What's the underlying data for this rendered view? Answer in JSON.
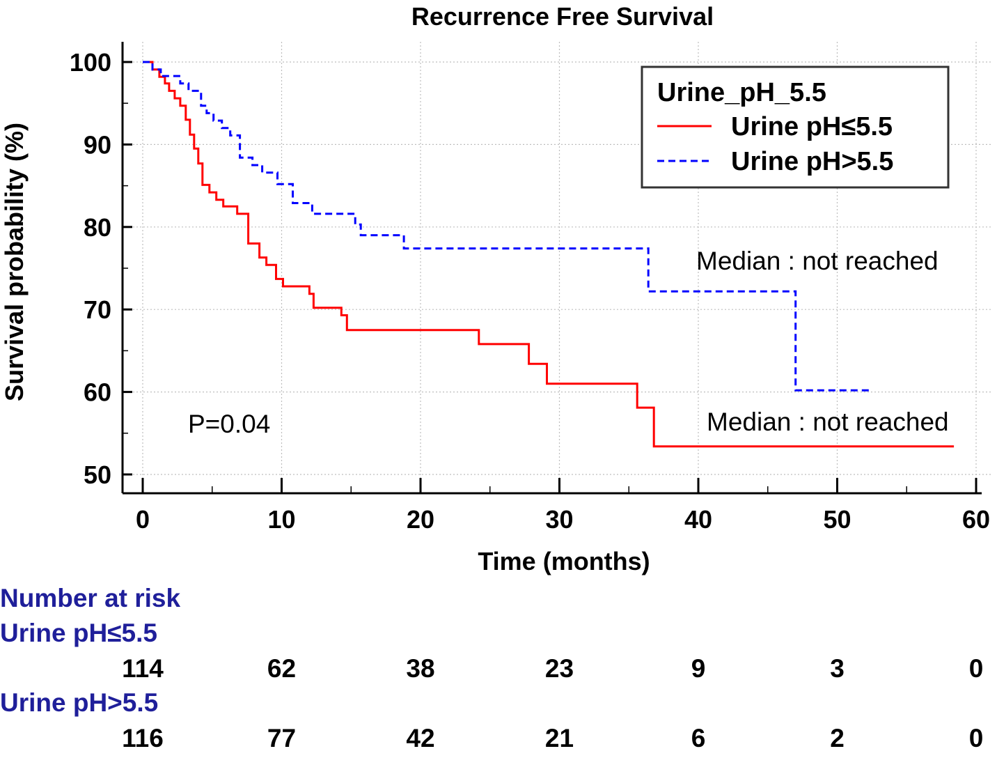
{
  "chart_data": {
    "type": "line",
    "title": "Recurrence Free Survival",
    "xlabel": "Time (months)",
    "ylabel": "Survival probability (%)",
    "xlim": [
      0,
      60
    ],
    "ylim": [
      50,
      100
    ],
    "xticks": [
      0,
      10,
      20,
      30,
      40,
      50,
      60
    ],
    "yticks": [
      50,
      60,
      70,
      80,
      90,
      100
    ],
    "grid": true,
    "legend": {
      "title": "Urine_pH_5.5",
      "position": "top-right"
    },
    "series": [
      {
        "name": "Urine pH≤5.5",
        "color": "#ff0000",
        "style": "solid",
        "step_x": [
          0,
          0.7,
          1.2,
          1.6,
          1.9,
          2.3,
          2.7,
          3.1,
          3.4,
          3.7,
          4.0,
          4.3,
          4.8,
          5.3,
          5.8,
          6.8,
          7.6,
          8.4,
          8.9,
          9.6,
          10.1,
          12.0,
          12.3,
          14.3,
          14.7,
          24.2,
          27.8,
          29.1,
          35.6,
          36.8,
          58.4
        ],
        "step_y": [
          100,
          99.1,
          98.2,
          97.4,
          96.5,
          95.6,
          94.7,
          93.0,
          91.2,
          89.5,
          87.7,
          85.1,
          84.2,
          83.3,
          82.5,
          81.6,
          78.0,
          76.3,
          75.4,
          73.7,
          72.8,
          71.9,
          70.2,
          69.3,
          67.5,
          65.8,
          63.4,
          61.0,
          58.1,
          53.4,
          53.4
        ]
      },
      {
        "name": "Urine pH>5.5",
        "color": "#0000ff",
        "style": "dashed",
        "step_x": [
          0,
          0.7,
          1.3,
          2.7,
          3.3,
          4.2,
          4.6,
          5.1,
          5.7,
          6.3,
          7.0,
          7.9,
          8.6,
          9.7,
          10.8,
          12.2,
          15.3,
          15.7,
          18.8,
          36.4,
          47.0,
          52.3
        ],
        "step_y": [
          100,
          99.1,
          98.3,
          97.4,
          96.5,
          94.7,
          93.8,
          92.9,
          92.0,
          91.1,
          88.4,
          87.5,
          86.6,
          85.2,
          82.9,
          81.6,
          80.3,
          79.0,
          77.4,
          72.2,
          60.2,
          60.2
        ]
      }
    ],
    "annotations": [
      {
        "text": "Median : not reached",
        "series": "Urine pH>5.5"
      },
      {
        "text": "Median : not reached",
        "series": "Urine pH≤5.5"
      },
      {
        "text": "P=0.04"
      }
    ],
    "risk_table": {
      "heading": "Number at risk",
      "times": [
        0,
        10,
        20,
        30,
        40,
        50,
        60
      ],
      "rows": [
        {
          "label": "Urine pH≤5.5",
          "values": [
            114,
            62,
            38,
            23,
            9,
            3,
            0
          ]
        },
        {
          "label": "Urine pH>5.5",
          "values": [
            116,
            77,
            42,
            21,
            6,
            2,
            0
          ]
        }
      ]
    }
  }
}
